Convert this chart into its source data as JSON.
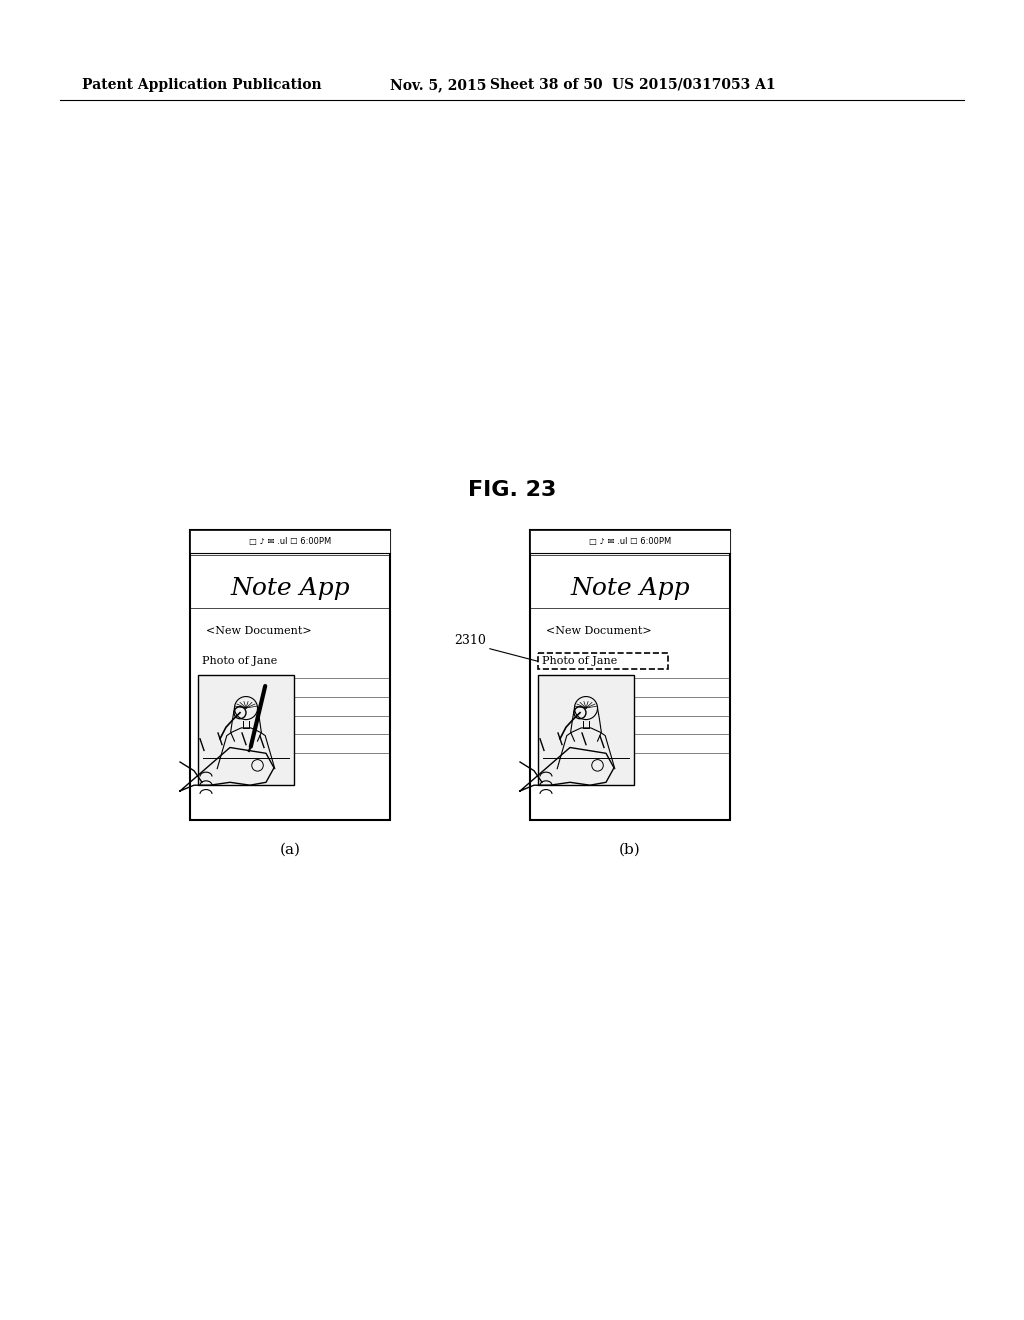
{
  "bg_color": "#ffffff",
  "header_text": "Patent Application Publication",
  "header_date": "Nov. 5, 2015",
  "header_sheet": "Sheet 38 of 50",
  "header_patent": "US 2015/0317053 A1",
  "fig_label": "FIG. 23",
  "phone_a_label": "(a)",
  "phone_b_label": "(b)",
  "label_2310": "2310",
  "status_bar_text": "□ ♪ ✉ .ul ☐ 6:00PM",
  "app_title": "Note App",
  "new_doc": "<New Document>",
  "photo_label": "Photo of Jane"
}
